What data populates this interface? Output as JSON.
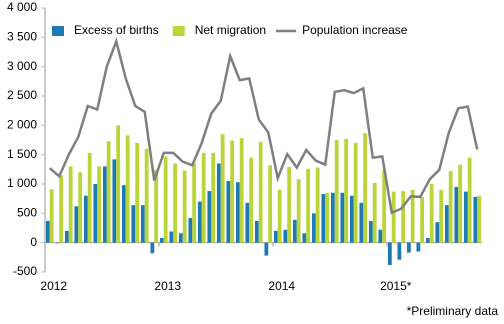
{
  "chart_data": {
    "type": "bar-line",
    "categories": [
      "2012",
      null,
      null,
      null,
      null,
      null,
      null,
      null,
      null,
      null,
      null,
      null,
      "2013",
      null,
      null,
      null,
      null,
      null,
      null,
      null,
      null,
      null,
      null,
      null,
      "2014",
      null,
      null,
      null,
      null,
      null,
      null,
      null,
      null,
      null,
      null,
      null,
      "2015*",
      null,
      null,
      null,
      null,
      null,
      null,
      null,
      null,
      null
    ],
    "series": [
      {
        "name": "Excess of births",
        "type": "bar",
        "color": "#1f7ab4",
        "values": [
          370,
          -10,
          200,
          620,
          800,
          1000,
          1300,
          1420,
          980,
          640,
          640,
          -180,
          80,
          190,
          160,
          420,
          700,
          880,
          1350,
          1050,
          1030,
          680,
          370,
          -220,
          200,
          220,
          390,
          160,
          500,
          830,
          850,
          850,
          800,
          680,
          370,
          220,
          -380,
          -290,
          -170,
          -150,
          80,
          350,
          640,
          950,
          870,
          780
        ]
      },
      {
        "name": "Net migration",
        "type": "bar",
        "color": "#b9d53a",
        "values": [
          910,
          1150,
          1300,
          1200,
          1530,
          1300,
          1730,
          2000,
          1830,
          1700,
          1600,
          1240,
          1470,
          1350,
          1230,
          1350,
          1530,
          1530,
          1850,
          1740,
          1780,
          1450,
          1720,
          1320,
          900,
          1290,
          1080,
          1260,
          1280,
          850,
          1750,
          1770,
          1700,
          1870,
          1020,
          1240,
          870,
          880,
          900,
          780,
          1000,
          900,
          1220,
          1330,
          1450,
          800
        ]
      },
      {
        "name": "Population increase",
        "type": "line",
        "color": "#7f7f7f",
        "values": [
          1270,
          1130,
          1500,
          1800,
          2330,
          2270,
          3000,
          3430,
          2800,
          2330,
          2230,
          1060,
          1530,
          1530,
          1380,
          1320,
          1700,
          2200,
          2420,
          3180,
          2770,
          2800,
          2100,
          1880,
          1100,
          1510,
          1280,
          1580,
          1400,
          1330,
          2570,
          2600,
          2550,
          2630,
          1450,
          1470,
          510,
          580,
          790,
          780,
          1080,
          1240,
          1870,
          2290,
          2320,
          1590
        ]
      }
    ],
    "ylim": [
      -500,
      4000
    ],
    "yticks": [
      -500,
      0,
      500,
      {
        "value": 1000,
        "label": "1 000"
      },
      {
        "value": 1500,
        "label": "1 500"
      },
      {
        "value": 2000,
        "label": "2 000"
      },
      {
        "value": 2500,
        "label": "2 500"
      },
      {
        "value": 3000,
        "label": "3 000"
      },
      {
        "value": 3500,
        "label": "3 500"
      },
      {
        "value": 4000,
        "label": "4 000"
      }
    ],
    "grid": false,
    "legend": "top-left",
    "note": "*Preliminary data"
  }
}
